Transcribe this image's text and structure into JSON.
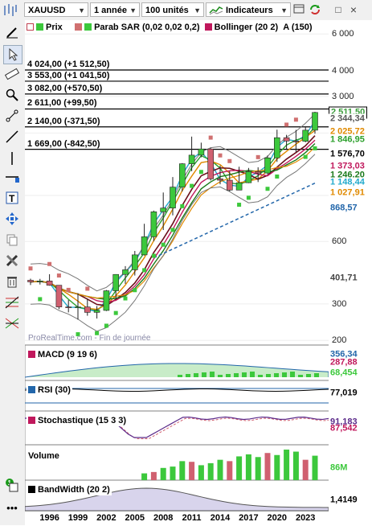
{
  "toolbar": {
    "symbol": "XAUUSD",
    "period": "1 année",
    "units": "100 unités",
    "indicators_label": "Indicateurs",
    "window_buttons": [
      "□",
      "×"
    ]
  },
  "legend": {
    "price_label": "Prix",
    "sar_label": "Parab SAR (0,02 0,02 0,2)",
    "bollinger_label": "Bollinger (20 2)",
    "extra_label": "A (150)"
  },
  "price_levels": [
    {
      "label": "4 024,00 (+1 512,50)",
      "value": 4024
    },
    {
      "label": "3 553,00 (+1 041,50)",
      "value": 3553
    },
    {
      "label": "3 082,00 (+570,50)",
      "value": 3082
    },
    {
      "label": "2 611,00 (+99,50)",
      "value": 2611
    },
    {
      "label": "2 140,00 (-371,50)",
      "value": 2140
    },
    {
      "label": "1 669,00 (-842,50)",
      "value": 1669
    }
  ],
  "yaxis": {
    "scale": "log",
    "ticks": [
      "6 000",
      "4 000",
      "3 000",
      "2 000",
      "1 000",
      "600",
      "300",
      "200"
    ]
  },
  "price_tags": [
    {
      "text": "2 511,50",
      "color": "#3a9c3a",
      "bg": "#ffffff",
      "border": "#000000",
      "value": 2511.5
    },
    {
      "text": "2 344,34",
      "color": "#555555",
      "bg": "#ffffff",
      "value": 2344.34
    },
    {
      "text": "2 025,72",
      "color": "#e08a00",
      "bg": "#ffffff",
      "value": 2025.72
    },
    {
      "text": "1 846,95",
      "color": "#2ca02c",
      "bg": "#ffffff",
      "value": 1846.95
    },
    {
      "text": "1 576,70",
      "color": "#000000",
      "bg": "#ffffff",
      "value": 1576.7
    },
    {
      "text": "1 373,03",
      "color": "#c0185c",
      "bg": "#ffffff",
      "value": 1373.03
    },
    {
      "text": "1 246,20",
      "color": "#1a7a1a",
      "bg": "#ffffff",
      "value": 1246.2
    },
    {
      "text": "1 148,44",
      "color": "#22aacc",
      "bg": "#ffffff",
      "value": 1148.44
    },
    {
      "text": "1 027,91",
      "color": "#e08a00",
      "bg": "#ffffff",
      "value": 1027.91
    },
    {
      "text": "868,57",
      "color": "#2266aa",
      "bg": "#ffffff",
      "value": 868.57
    },
    {
      "text": "401,71",
      "color": "#444444",
      "bg": "#ffffff",
      "value": 401.71
    }
  ],
  "watermark": "ProRealTime.com - Fin de journée",
  "panels": [
    {
      "label": "MACD (9 19 6)",
      "tags": [
        "356,34",
        "287,88",
        "68,454"
      ]
    },
    {
      "label": "RSI (30)",
      "tags": [
        "77,019"
      ]
    },
    {
      "label": "Stochastique (15 3 3)",
      "tags": [
        "91,183",
        "87,542"
      ]
    },
    {
      "label": "Volume",
      "tags": [
        "86M"
      ]
    },
    {
      "label": "BandWidth (20 2)",
      "tags": [
        "1,4149"
      ]
    }
  ],
  "xaxis": {
    "labels": [
      "1996",
      "1999",
      "2002",
      "2005",
      "2008",
      "2011",
      "2014",
      "2017",
      "2020",
      "2023"
    ]
  },
  "colors": {
    "up": "#3cc83c",
    "down": "#d06070",
    "sar": "#d07070",
    "sar_up": "#3cc83c"
  },
  "chart_data": {
    "type": "candlestick",
    "y_scale": "log",
    "x_range": [
      1994,
      2024
    ],
    "ylim": [
      190,
      7000
    ],
    "candles": [
      {
        "year": 1994,
        "open": 390,
        "close": 383,
        "high": 397,
        "low": 370
      },
      {
        "year": 1995,
        "open": 383,
        "close": 387,
        "high": 396,
        "low": 372
      },
      {
        "year": 1996,
        "open": 387,
        "close": 369,
        "high": 417,
        "low": 367
      },
      {
        "year": 1997,
        "open": 369,
        "close": 290,
        "high": 367,
        "low": 283
      },
      {
        "year": 1998,
        "open": 290,
        "close": 288,
        "high": 313,
        "low": 273
      },
      {
        "year": 1999,
        "open": 288,
        "close": 290,
        "high": 338,
        "low": 252
      },
      {
        "year": 2000,
        "open": 290,
        "close": 273,
        "high": 317,
        "low": 263
      },
      {
        "year": 2001,
        "open": 273,
        "close": 279,
        "high": 293,
        "low": 255
      },
      {
        "year": 2002,
        "open": 279,
        "close": 347,
        "high": 350,
        "low": 277
      },
      {
        "year": 2003,
        "open": 347,
        "close": 416,
        "high": 417,
        "low": 319
      },
      {
        "year": 2004,
        "open": 416,
        "close": 438,
        "high": 456,
        "low": 375
      },
      {
        "year": 2005,
        "open": 438,
        "close": 517,
        "high": 540,
        "low": 411
      },
      {
        "year": 2006,
        "open": 517,
        "close": 632,
        "high": 730,
        "low": 513
      },
      {
        "year": 2007,
        "open": 632,
        "close": 834,
        "high": 845,
        "low": 602
      },
      {
        "year": 2008,
        "open": 834,
        "close": 869,
        "high": 1033,
        "low": 681
      },
      {
        "year": 2009,
        "open": 869,
        "close": 1097,
        "high": 1226,
        "low": 802
      },
      {
        "year": 2010,
        "open": 1097,
        "close": 1421,
        "high": 1431,
        "low": 1044
      },
      {
        "year": 2011,
        "open": 1421,
        "close": 1564,
        "high": 1921,
        "low": 1308
      },
      {
        "year": 2012,
        "open": 1564,
        "close": 1675,
        "high": 1796,
        "low": 1527
      },
      {
        "year": 2013,
        "open": 1675,
        "close": 1202,
        "high": 1696,
        "low": 1180
      },
      {
        "year": 2014,
        "open": 1202,
        "close": 1184,
        "high": 1392,
        "low": 1131
      },
      {
        "year": 2015,
        "open": 1184,
        "close": 1061,
        "high": 1307,
        "low": 1046
      },
      {
        "year": 2016,
        "open": 1061,
        "close": 1151,
        "high": 1375,
        "low": 1061
      },
      {
        "year": 2017,
        "open": 1151,
        "close": 1303,
        "high": 1357,
        "low": 1146
      },
      {
        "year": 2018,
        "open": 1303,
        "close": 1282,
        "high": 1366,
        "low": 1160
      },
      {
        "year": 2019,
        "open": 1282,
        "close": 1517,
        "high": 1557,
        "low": 1266
      },
      {
        "year": 2020,
        "open": 1517,
        "close": 1898,
        "high": 2075,
        "low": 1451
      },
      {
        "year": 2021,
        "open": 1898,
        "close": 1829,
        "high": 1959,
        "low": 1676
      },
      {
        "year": 2022,
        "open": 1829,
        "close": 1824,
        "high": 2070,
        "low": 1615
      },
      {
        "year": 2023,
        "open": 1824,
        "close": 2063,
        "high": 2135,
        "low": 1804
      },
      {
        "year": 2024,
        "open": 2063,
        "close": 2511.5,
        "high": 2531,
        "low": 1984
      }
    ],
    "volume": [
      10,
      12,
      18,
      20,
      28,
      27,
      22,
      25,
      30,
      28,
      35,
      38,
      34,
      40,
      37,
      45,
      42,
      30,
      36
    ],
    "volume_start_year": 2006
  }
}
